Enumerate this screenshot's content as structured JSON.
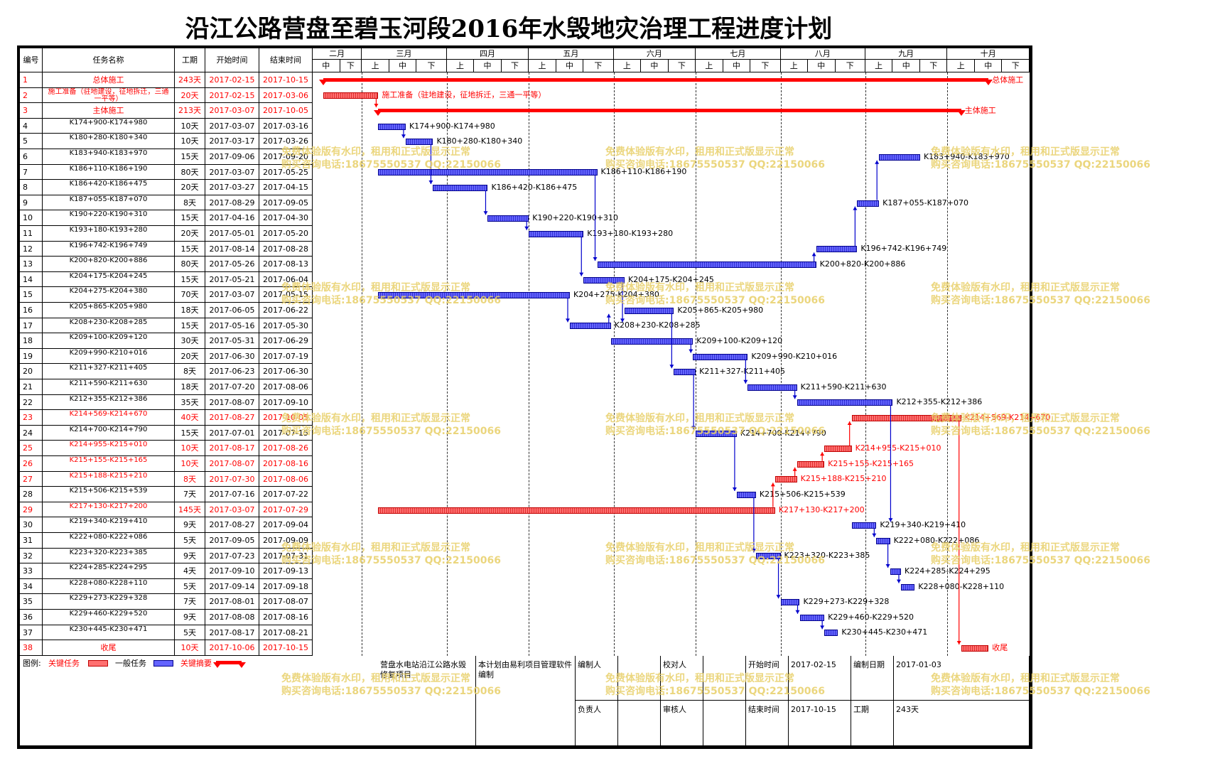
{
  "title": "沿江公路营盘至碧玉河段2016年水毁地灾治理工程进度计划",
  "columns": {
    "num": "编号",
    "name": "任务名称",
    "dur": "工期",
    "start": "开始时间",
    "end": "结束时间"
  },
  "months": [
    "二月",
    "三月",
    "四月",
    "五月",
    "六月",
    "七月",
    "八月",
    "九月",
    "十月"
  ],
  "periods": {
    "first": "上",
    "mid": "中",
    "last": "下"
  },
  "timeline_start": "2017-02-11",
  "colors": {
    "normal": "#6464ff",
    "critical": "#ff6060",
    "summary": "#ff0000",
    "link": "#0000cc",
    "critical_link": "#ff0000"
  },
  "tasks": [
    {
      "num": "1",
      "name": "总体施工",
      "dur": "243天",
      "start": "2017-02-15",
      "end": "2017-10-15",
      "type": "summary"
    },
    {
      "num": "2",
      "name": "施工准备（驻地建设，征地拆迁，三通一平等）",
      "dur": "20天",
      "start": "2017-02-15",
      "end": "2017-03-06",
      "type": "critical"
    },
    {
      "num": "3",
      "name": "主体施工",
      "dur": "213天",
      "start": "2017-03-07",
      "end": "2017-10-05",
      "type": "summary"
    },
    {
      "num": "4",
      "name": "K174+900-K174+980",
      "dur": "10天",
      "start": "2017-03-07",
      "end": "2017-03-16",
      "type": "normal"
    },
    {
      "num": "5",
      "name": "K180+280-K180+340",
      "dur": "10天",
      "start": "2017-03-17",
      "end": "2017-03-26",
      "type": "normal"
    },
    {
      "num": "6",
      "name": "K183+940-K183+970",
      "dur": "15天",
      "start": "2017-09-06",
      "end": "2017-09-20",
      "type": "normal"
    },
    {
      "num": "7",
      "name": "K186+110-K186+190",
      "dur": "80天",
      "start": "2017-03-07",
      "end": "2017-05-25",
      "type": "normal"
    },
    {
      "num": "8",
      "name": "K186+420-K186+475",
      "dur": "20天",
      "start": "2017-03-27",
      "end": "2017-04-15",
      "type": "normal"
    },
    {
      "num": "9",
      "name": "K187+055-K187+070",
      "dur": "8天",
      "start": "2017-08-29",
      "end": "2017-09-05",
      "type": "normal"
    },
    {
      "num": "10",
      "name": "K190+220-K190+310",
      "dur": "15天",
      "start": "2017-04-16",
      "end": "2017-04-30",
      "type": "normal"
    },
    {
      "num": "11",
      "name": "K193+180-K193+280",
      "dur": "20天",
      "start": "2017-05-01",
      "end": "2017-05-20",
      "type": "normal"
    },
    {
      "num": "12",
      "name": "K196+742-K196+749",
      "dur": "15天",
      "start": "2017-08-14",
      "end": "2017-08-28",
      "type": "normal"
    },
    {
      "num": "13",
      "name": "K200+820-K200+886",
      "dur": "80天",
      "start": "2017-05-26",
      "end": "2017-08-13",
      "type": "normal"
    },
    {
      "num": "14",
      "name": "K204+175-K204+245",
      "dur": "15天",
      "start": "2017-05-21",
      "end": "2017-06-04",
      "type": "normal"
    },
    {
      "num": "15",
      "name": "K204+275-K204+380",
      "dur": "70天",
      "start": "2017-03-07",
      "end": "2017-05-15",
      "type": "normal"
    },
    {
      "num": "16",
      "name": "K205+865-K205+980",
      "dur": "18天",
      "start": "2017-06-05",
      "end": "2017-06-22",
      "type": "normal"
    },
    {
      "num": "17",
      "name": "K208+230-K208+285",
      "dur": "15天",
      "start": "2017-05-16",
      "end": "2017-05-30",
      "type": "normal"
    },
    {
      "num": "18",
      "name": "K209+100-K209+120",
      "dur": "30天",
      "start": "2017-05-31",
      "end": "2017-06-29",
      "type": "normal"
    },
    {
      "num": "19",
      "name": "K209+990-K210+016",
      "dur": "20天",
      "start": "2017-06-30",
      "end": "2017-07-19",
      "type": "normal"
    },
    {
      "num": "20",
      "name": "K211+327-K211+405",
      "dur": "8天",
      "start": "2017-06-23",
      "end": "2017-06-30",
      "type": "normal"
    },
    {
      "num": "21",
      "name": "K211+590-K211+630",
      "dur": "18天",
      "start": "2017-07-20",
      "end": "2017-08-06",
      "type": "normal"
    },
    {
      "num": "22",
      "name": "K212+355-K212+386",
      "dur": "35天",
      "start": "2017-08-07",
      "end": "2017-09-10",
      "type": "normal"
    },
    {
      "num": "23",
      "name": "K214+569-K214+670",
      "dur": "40天",
      "start": "2017-08-27",
      "end": "2017-10-05",
      "type": "critical"
    },
    {
      "num": "24",
      "name": "K214+700-K214+790",
      "dur": "15天",
      "start": "2017-07-01",
      "end": "2017-07-15",
      "type": "normal"
    },
    {
      "num": "25",
      "name": "K214+955-K215+010",
      "dur": "10天",
      "start": "2017-08-17",
      "end": "2017-08-26",
      "type": "critical"
    },
    {
      "num": "26",
      "name": "K215+155-K215+165",
      "dur": "10天",
      "start": "2017-08-07",
      "end": "2017-08-16",
      "type": "critical"
    },
    {
      "num": "27",
      "name": "K215+188-K215+210",
      "dur": "8天",
      "start": "2017-07-30",
      "end": "2017-08-06",
      "type": "critical"
    },
    {
      "num": "28",
      "name": "K215+506-K215+539",
      "dur": "7天",
      "start": "2017-07-16",
      "end": "2017-07-22",
      "type": "normal"
    },
    {
      "num": "29",
      "name": "K217+130-K217+200",
      "dur": "145天",
      "start": "2017-03-07",
      "end": "2017-07-29",
      "type": "critical"
    },
    {
      "num": "30",
      "name": "K219+340-K219+410",
      "dur": "9天",
      "start": "2017-08-27",
      "end": "2017-09-04",
      "type": "normal"
    },
    {
      "num": "31",
      "name": "K222+080-K222+086",
      "dur": "5天",
      "start": "2017-09-05",
      "end": "2017-09-09",
      "type": "normal"
    },
    {
      "num": "32",
      "name": "K223+320-K223+385",
      "dur": "9天",
      "start": "2017-07-23",
      "end": "2017-07-31",
      "type": "normal"
    },
    {
      "num": "33",
      "name": "K224+285-K224+295",
      "dur": "4天",
      "start": "2017-09-10",
      "end": "2017-09-13",
      "type": "normal"
    },
    {
      "num": "34",
      "name": "K228+080-K228+110",
      "dur": "5天",
      "start": "2017-09-14",
      "end": "2017-09-18",
      "type": "normal"
    },
    {
      "num": "35",
      "name": "K229+273-K229+328",
      "dur": "7天",
      "start": "2017-08-01",
      "end": "2017-08-07",
      "type": "normal"
    },
    {
      "num": "36",
      "name": "K229+460-K229+520",
      "dur": "9天",
      "start": "2017-08-08",
      "end": "2017-08-16",
      "type": "normal"
    },
    {
      "num": "37",
      "name": "K230+445-K230+471",
      "dur": "5天",
      "start": "2017-08-17",
      "end": "2017-08-21",
      "type": "normal"
    },
    {
      "num": "38",
      "name": "收尾",
      "dur": "10天",
      "start": "2017-10-06",
      "end": "2017-10-15",
      "type": "critical"
    }
  ],
  "bar_labels": {
    "1": "总体施工",
    "2": "施工准备（驻地建设，征地拆迁，三通一平等）",
    "3": "主体施工",
    "38": "收尾"
  },
  "links": [
    [
      2,
      3
    ],
    [
      4,
      5
    ],
    [
      5,
      8
    ],
    [
      7,
      13
    ],
    [
      8,
      10
    ],
    [
      10,
      11
    ],
    [
      11,
      14
    ],
    [
      14,
      17
    ],
    [
      15,
      17
    ],
    [
      17,
      16
    ],
    [
      16,
      20
    ],
    [
      18,
      19
    ],
    [
      20,
      24
    ],
    [
      24,
      28
    ],
    [
      28,
      32
    ],
    [
      32,
      35
    ],
    [
      35,
      36
    ],
    [
      36,
      37
    ],
    [
      13,
      12
    ],
    [
      12,
      9
    ],
    [
      9,
      6
    ],
    [
      30,
      31
    ],
    [
      31,
      33
    ],
    [
      33,
      34
    ],
    [
      29,
      27
    ],
    [
      27,
      26
    ],
    [
      26,
      25
    ],
    [
      25,
      23
    ],
    [
      23,
      38
    ],
    [
      22,
      30
    ],
    [
      21,
      22
    ],
    [
      19,
      21
    ]
  ],
  "watermark": {
    "line1": "免费体验版有水印，租用和正式版显示正常",
    "line2": "购买咨询电话:18675550537 QQ:22150066"
  },
  "legend": {
    "label": "图例:",
    "critical": "关键任务",
    "normal": "一般任务",
    "summary": "关键摘要"
  },
  "footer": {
    "project": "营盘水电站沿江公路水毁修复项目",
    "note": "本计划由易利项目管理软件编制",
    "editor_label": "编制人",
    "reviewer_label": "负责人",
    "checker_label": "校对人",
    "auditor_label": "审核人",
    "start_label": "开始时间",
    "start_value": "2017-02-15",
    "end_label": "结束时间",
    "end_value": "2017-10-15",
    "date_label": "编制日期",
    "date_value": "2017-01-03",
    "dur_label": "工期",
    "dur_value": "243天"
  }
}
